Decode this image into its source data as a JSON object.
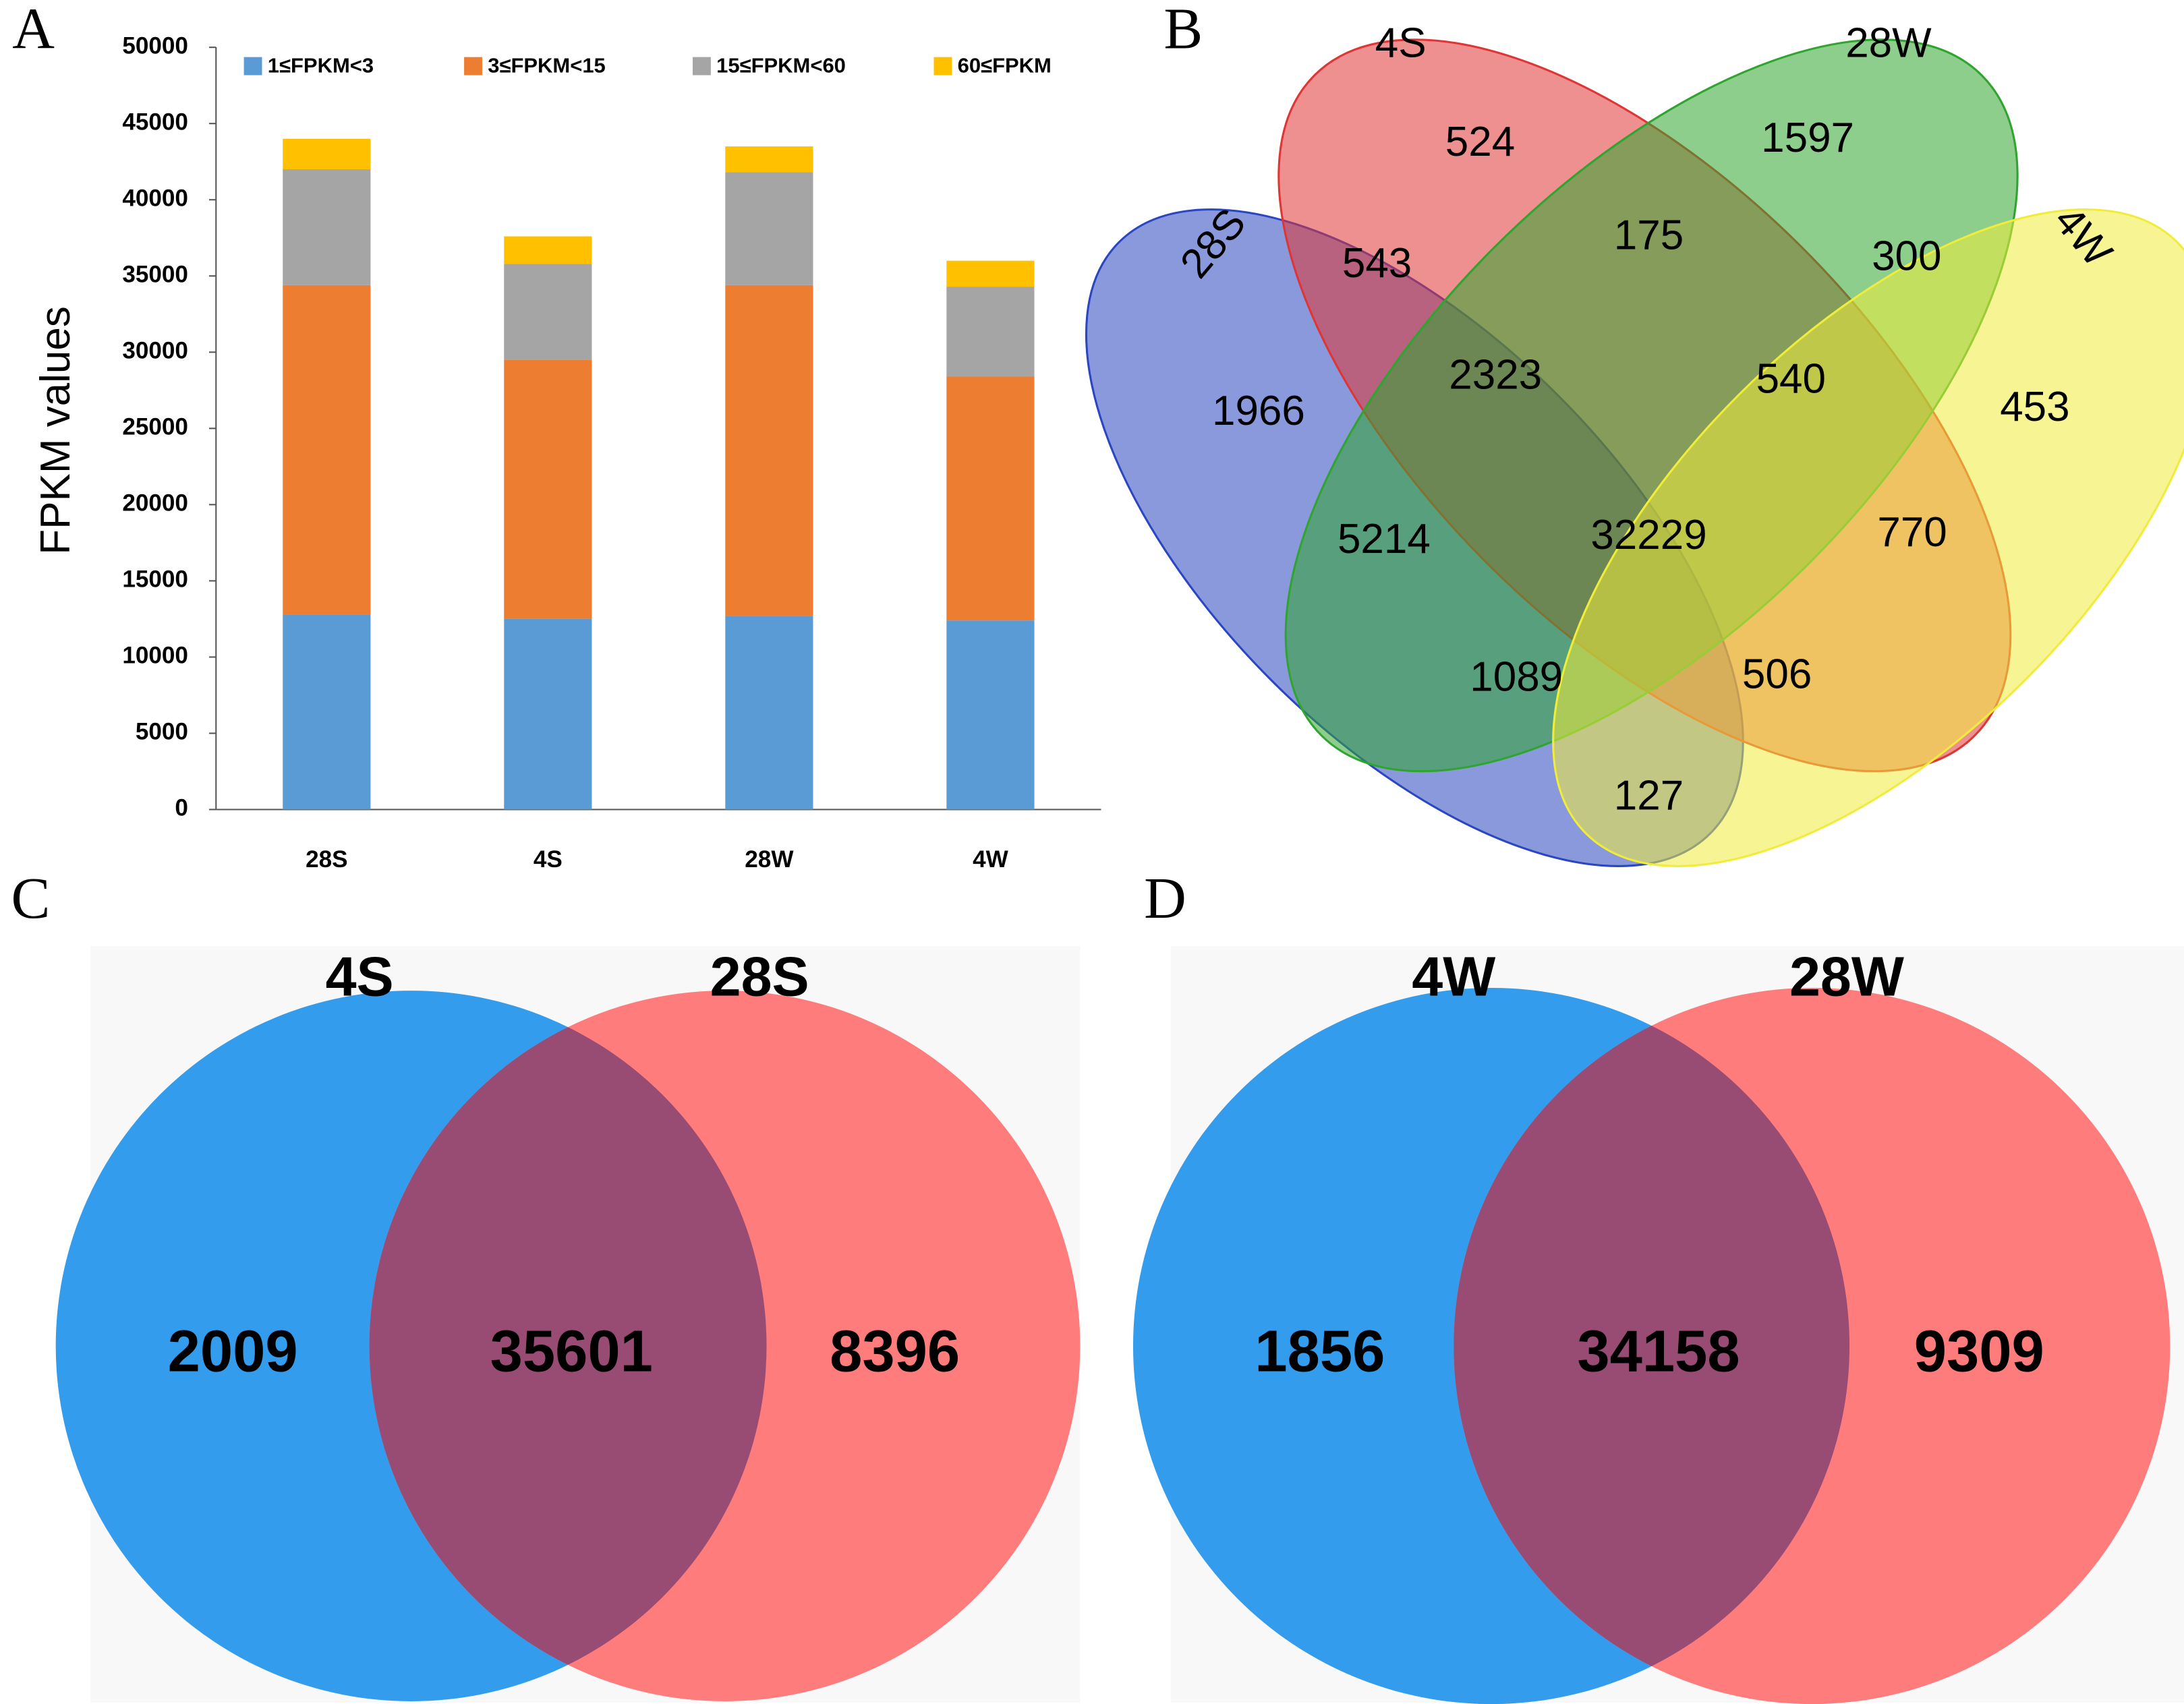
{
  "chart_data": [
    {
      "type": "bar",
      "stacked": true,
      "panel_label": "A",
      "y_label": "FPKM values",
      "categories": [
        "28S",
        "4S",
        "28W",
        "4W"
      ],
      "series": [
        {
          "name": "1≤FPKM<3",
          "color": "#5b9bd5",
          "values": [
            12800,
            12500,
            12700,
            12400
          ]
        },
        {
          "name": "3≤FPKM<15",
          "color": "#ed7d31",
          "values": [
            21600,
            17000,
            21700,
            16000
          ]
        },
        {
          "name": "15≤FPKM<60",
          "color": "#a5a5a5",
          "values": [
            7600,
            6300,
            7400,
            5900
          ]
        },
        {
          "name": "60≤FPKM",
          "color": "#ffc000",
          "values": [
            2000,
            1800,
            1700,
            1700
          ]
        }
      ],
      "ylim": [
        0,
        50000
      ],
      "yticks": [
        0,
        5000,
        10000,
        15000,
        20000,
        25000,
        30000,
        35000,
        40000,
        45000,
        50000
      ],
      "legend": "top"
    },
    {
      "type": "venn",
      "panel_label": "B",
      "sets": [
        {
          "name": "28S",
          "color": "#2a46c0"
        },
        {
          "name": "4S",
          "color": "#e03535"
        },
        {
          "name": "28W",
          "color": "#2fa52f"
        },
        {
          "name": "4W",
          "color": "#f0ec3a"
        }
      ],
      "values": [
        524,
        1597,
        543,
        175,
        300,
        1966,
        2323,
        540,
        453,
        5214,
        32229,
        770,
        1089,
        506,
        127
      ]
    },
    {
      "type": "venn",
      "panel_label": "C",
      "sets": [
        {
          "name": "4S",
          "color": "#349cec"
        },
        {
          "name": "28S",
          "color": "#ff7c7c"
        }
      ],
      "values": [
        2009,
        35601,
        8396
      ]
    },
    {
      "type": "venn",
      "panel_label": "D",
      "sets": [
        {
          "name": "4W",
          "color": "#349cec"
        },
        {
          "name": "28W",
          "color": "#ff7c7c"
        }
      ],
      "values": [
        1856,
        34158,
        9309
      ]
    }
  ]
}
